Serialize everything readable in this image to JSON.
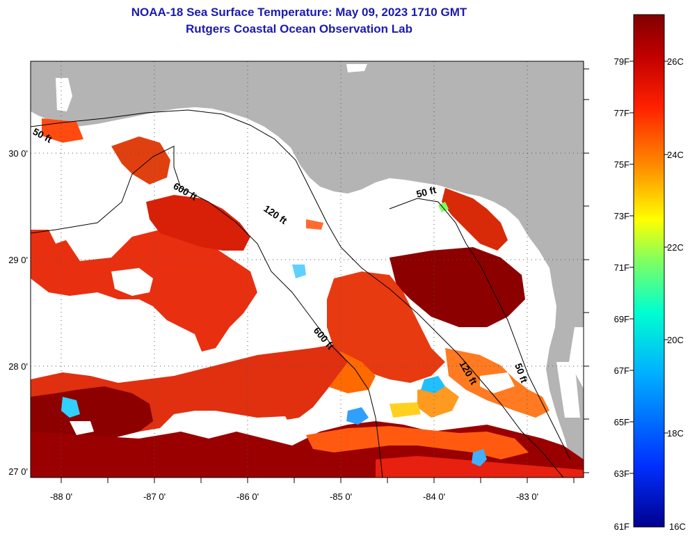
{
  "title": {
    "line1": "NOAA-18 Sea Surface Temperature:  May 09, 2023 1710 GMT",
    "line2": "Rutgers Coastal Ocean Observation Lab"
  },
  "colors": {
    "land": "#b4b4b4",
    "cloud": "#ffffff",
    "title": "#1a1ab0"
  },
  "axes": {
    "lat_labels": [
      "30 0'",
      "29 0'",
      "28 0'",
      "27 0'"
    ],
    "lon_labels": [
      "-88 0'",
      "-87 0'",
      "-86 0'",
      "-85 0'",
      "-84 0'",
      "-83 0'"
    ]
  },
  "depth_contours": {
    "labels": [
      "50 ft",
      "600 ft",
      "120 ft",
      "50 ft",
      "600 ft",
      "120 ft",
      "50 ft"
    ]
  },
  "colorbar": {
    "fahrenheit": [
      "79F",
      "77F",
      "75F",
      "73F",
      "71F",
      "69F",
      "67F",
      "65F",
      "63F",
      "61F"
    ],
    "celsius": [
      "26C",
      "24C",
      "22C",
      "20C",
      "18C",
      "16C"
    ]
  }
}
